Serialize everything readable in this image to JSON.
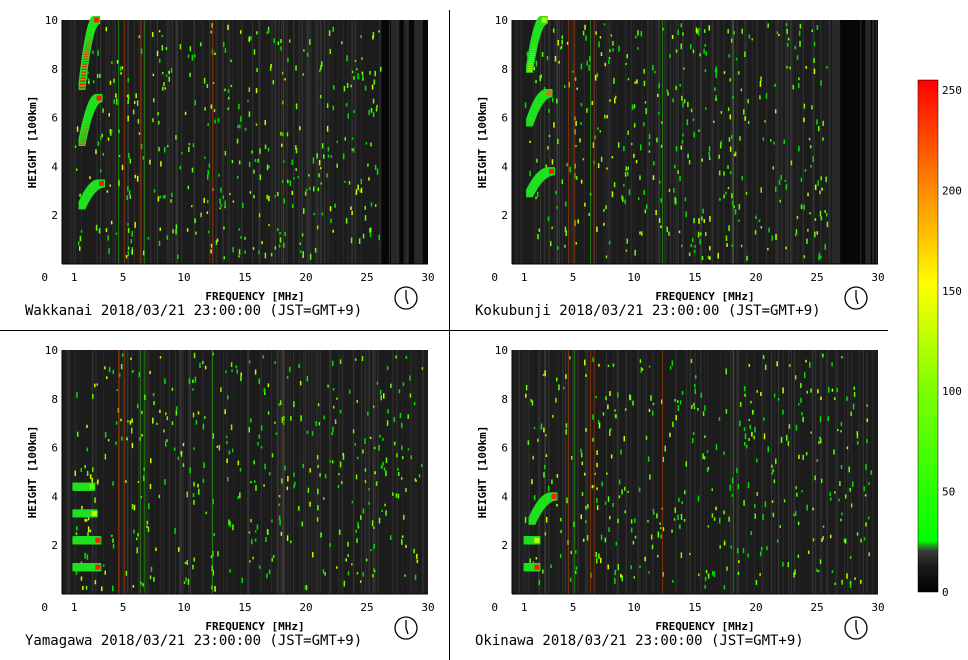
{
  "colorbar": {
    "ticks": [
      "250",
      "200",
      "150",
      "100",
      "50",
      "0"
    ],
    "tick_values": [
      250,
      200,
      150,
      100,
      50,
      0
    ],
    "stops": [
      "#000000",
      "#3a3a3a",
      "#00ff00",
      "#80ff00",
      "#ffff00",
      "#ff8000",
      "#ff0000"
    ]
  },
  "chart_data": [
    {
      "type": "heatmap",
      "station": "Wakkanai",
      "caption": "Wakkanai 2018/03/21 23:00:00 (JST=GMT+9)",
      "xlabel": "FREQUENCY [MHz]",
      "ylabel": "HEIGHT [100km]",
      "xlim": [
        0,
        30
      ],
      "ylim": [
        0,
        10
      ],
      "xticks": [
        "1",
        "5",
        "10",
        "15",
        "20",
        "25",
        "30"
      ],
      "xtick_values": [
        1,
        5,
        10,
        15,
        20,
        25,
        30
      ],
      "yticks": [
        "0",
        "2",
        "4",
        "6",
        "8",
        "10"
      ],
      "ytick_values": [
        0,
        2,
        4,
        6,
        8,
        10
      ],
      "traces": [
        {
          "layer": "E",
          "f_start": 1.6,
          "f_end": 3.2,
          "h_start": 2.4,
          "h_end": 3.3,
          "intensity": 250
        },
        {
          "layer": "F-2nd",
          "f_start": 1.6,
          "f_end": 3.0,
          "h_start": 5.0,
          "h_end": 6.8,
          "intensity": 240
        },
        {
          "layer": "F-3rd",
          "f_start": 1.6,
          "f_end": 2.8,
          "h_start": 7.3,
          "h_end": 10.0,
          "intensity": 230
        }
      ],
      "noise_cutoff_mhz": 26.2
    },
    {
      "type": "heatmap",
      "station": "Kokubunji",
      "caption": "Kokubunji 2018/03/21 23:00:00 (JST=GMT+9)",
      "xlabel": "FREQUENCY [MHz]",
      "ylabel": "HEIGHT [100km]",
      "xlim": [
        0,
        30
      ],
      "ylim": [
        0,
        10
      ],
      "xticks": [
        "1",
        "5",
        "10",
        "15",
        "20",
        "25",
        "30"
      ],
      "xtick_values": [
        1,
        5,
        10,
        15,
        20,
        25,
        30
      ],
      "yticks": [
        "0",
        "2",
        "4",
        "6",
        "8",
        "10"
      ],
      "ytick_values": [
        0,
        2,
        4,
        6,
        8,
        10
      ],
      "traces": [
        {
          "layer": "E",
          "f_start": 1.4,
          "f_end": 3.2,
          "h_start": 2.9,
          "h_end": 3.8,
          "intensity": 250
        },
        {
          "layer": "F-2nd",
          "f_start": 1.4,
          "f_end": 3.0,
          "h_start": 5.8,
          "h_end": 7.0,
          "intensity": 200
        },
        {
          "layer": "F-3rd",
          "f_start": 1.4,
          "f_end": 2.6,
          "h_start": 8.0,
          "h_end": 10.0,
          "intensity": 120
        }
      ],
      "noise_cutoff_mhz": 25.8
    },
    {
      "type": "heatmap",
      "station": "Yamagawa",
      "caption": "Yamagawa 2018/03/21 23:00:00 (JST=GMT+9)",
      "xlabel": "FREQUENCY [MHz]",
      "ylabel": "HEIGHT [100km]",
      "xlim": [
        0,
        30
      ],
      "ylim": [
        0,
        10
      ],
      "xticks": [
        "1",
        "5",
        "10",
        "15",
        "20",
        "25",
        "30"
      ],
      "xtick_values": [
        1,
        5,
        10,
        15,
        20,
        25,
        30
      ],
      "yticks": [
        "0",
        "2",
        "4",
        "6",
        "8",
        "10"
      ],
      "ytick_values": [
        0,
        2,
        4,
        6,
        8,
        10
      ],
      "traces": [
        {
          "layer": "band-1",
          "f_start": 1.1,
          "f_end": 2.9,
          "h_start": 1.1,
          "h_end": 1.1,
          "intensity": 250
        },
        {
          "layer": "band-2",
          "f_start": 1.1,
          "f_end": 2.9,
          "h_start": 2.2,
          "h_end": 2.2,
          "intensity": 240
        },
        {
          "layer": "band-3",
          "f_start": 1.1,
          "f_end": 2.6,
          "h_start": 3.3,
          "h_end": 3.3,
          "intensity": 120
        },
        {
          "layer": "band-4",
          "f_start": 1.1,
          "f_end": 2.4,
          "h_start": 4.4,
          "h_end": 4.4,
          "intensity": 90
        }
      ],
      "noise_cutoff_mhz": 30
    },
    {
      "type": "heatmap",
      "station": "Okinawa",
      "caption": "Okinawa 2018/03/21 23:00:00 (JST=GMT+9)",
      "xlabel": "FREQUENCY [MHz]",
      "ylabel": "HEIGHT [100km]",
      "xlim": [
        0,
        30
      ],
      "ylim": [
        0,
        10
      ],
      "xticks": [
        "1",
        "5",
        "10",
        "15",
        "20",
        "25",
        "30"
      ],
      "xtick_values": [
        1,
        5,
        10,
        15,
        20,
        25,
        30
      ],
      "yticks": [
        "0",
        "2",
        "4",
        "6",
        "8",
        "10"
      ],
      "ytick_values": [
        0,
        2,
        4,
        6,
        8,
        10
      ],
      "traces": [
        {
          "layer": "band-1",
          "f_start": 1.2,
          "f_end": 2.0,
          "h_start": 1.1,
          "h_end": 1.1,
          "intensity": 250
        },
        {
          "layer": "band-2",
          "f_start": 1.2,
          "f_end": 2.0,
          "h_start": 2.2,
          "h_end": 2.2,
          "intensity": 110
        },
        {
          "layer": "E",
          "f_start": 1.6,
          "f_end": 3.4,
          "h_start": 3.0,
          "h_end": 4.0,
          "intensity": 240
        }
      ],
      "noise_cutoff_mhz": 30
    }
  ]
}
